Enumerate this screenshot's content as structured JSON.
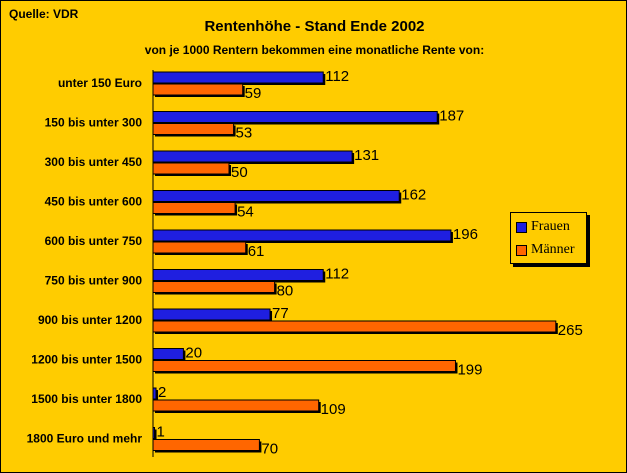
{
  "source": "Quelle: VDR",
  "colors": {
    "frauen": "#1F1FE0",
    "maenner": "#FF6600",
    "background": "#FFCC00"
  },
  "chart_data": {
    "type": "bar",
    "orientation": "horizontal",
    "title": "Rentenhöhe - Stand Ende 2002",
    "subtitle": "von je 1000 Rentern bekommen eine monatliche Rente von:",
    "categories": [
      "unter 150 Euro",
      "150 bis unter 300",
      "300 bis unter 450",
      "450 bis unter 600",
      "600 bis unter 750",
      "750 bis unter 900",
      "900 bis unter 1200",
      "1200 bis unter 1500",
      "1500 bis unter 1800",
      "1800 Euro und mehr"
    ],
    "series": [
      {
        "name": "Frauen",
        "color": "#1F1FE0",
        "values": [
          112,
          187,
          131,
          162,
          196,
          112,
          77,
          20,
          2,
          1
        ]
      },
      {
        "name": "Männer",
        "color": "#FF6600",
        "values": [
          59,
          53,
          50,
          54,
          61,
          80,
          265,
          199,
          109,
          70
        ]
      }
    ],
    "xlim": [
      0,
      280
    ],
    "grid": false,
    "data_labels": true,
    "legend_position": "right"
  }
}
